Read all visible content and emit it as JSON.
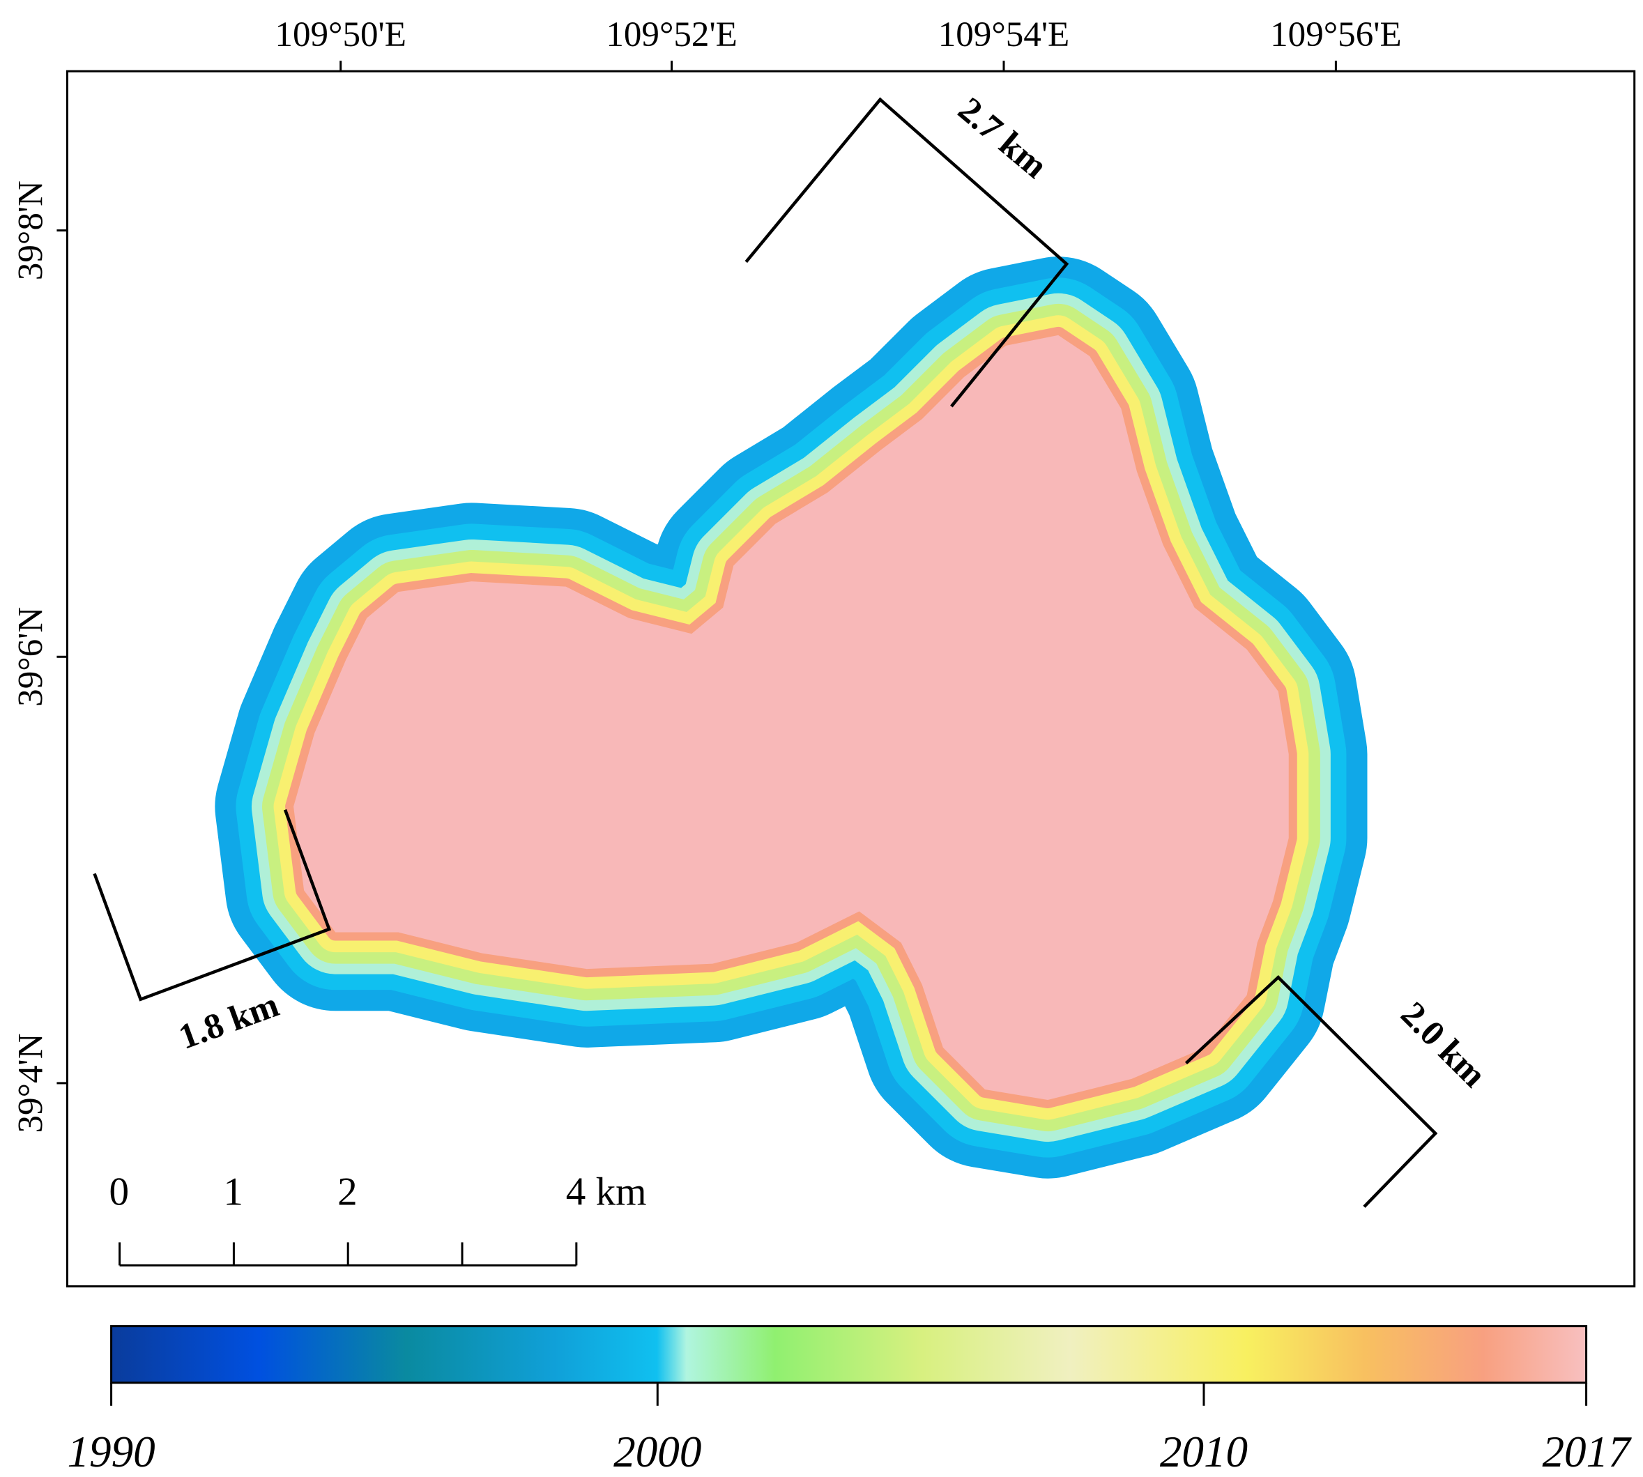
{
  "map": {
    "lon_labels": [
      "109°50'E",
      "109°52'E",
      "109°54'E",
      "109°56'E"
    ],
    "lat_labels": [
      "39°8'N",
      "39°6'N",
      "39°4'N"
    ],
    "annotations": [
      "2.7 km",
      "1.8 km",
      "2.0 km"
    ],
    "scale_bar": {
      "lim": [
        0,
        4
      ],
      "ticks": [
        0,
        1,
        2,
        {
          "value": 4,
          "label": "4 km"
        }
      ]
    }
  },
  "colorbar": {
    "lim": [
      1990,
      2017
    ],
    "ticks": [
      1990,
      2000,
      2010,
      2017
    ]
  }
}
